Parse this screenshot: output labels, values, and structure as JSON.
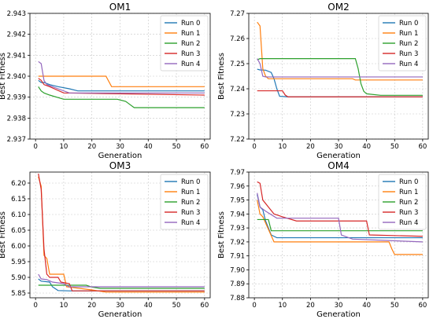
{
  "figure": {
    "width": 550,
    "height": 406
  },
  "series_colors": [
    "#1f77b4",
    "#ff7f0e",
    "#2ca02c",
    "#d62728",
    "#9467bd"
  ],
  "chart_data": [
    {
      "type": "line",
      "title": "OM1",
      "xlabel": "Generation",
      "ylabel": "Best Fitness",
      "xlim": [
        -2,
        62
      ],
      "ylim": [
        2.937,
        2.943
      ],
      "xticks": [
        0,
        10,
        20,
        30,
        40,
        50,
        60
      ],
      "yticks": [
        2.937,
        2.938,
        2.939,
        2.94,
        2.941,
        2.942,
        2.943
      ],
      "ytick_decimals": 3,
      "grid": true,
      "legend": "top-right",
      "series": [
        {
          "name": "Run 0",
          "points": [
            [
              1,
              2.9398
            ],
            [
              2,
              2.9397
            ],
            [
              3,
              2.9397
            ],
            [
              5,
              2.9396
            ],
            [
              8,
              2.9395
            ],
            [
              12,
              2.9394
            ],
            [
              15,
              2.9393
            ],
            [
              20,
              2.9393
            ],
            [
              60,
              2.9393
            ]
          ]
        },
        {
          "name": "Run 1",
          "points": [
            [
              1,
              2.94
            ],
            [
              2,
              2.94
            ],
            [
              25,
              2.94
            ],
            [
              27,
              2.9395
            ],
            [
              60,
              2.9395
            ]
          ]
        },
        {
          "name": "Run 2",
          "points": [
            [
              1,
              2.9395
            ],
            [
              2,
              2.9393
            ],
            [
              3,
              2.9392
            ],
            [
              5,
              2.9391
            ],
            [
              10,
              2.9389
            ],
            [
              29,
              2.9389
            ],
            [
              32,
              2.9388
            ],
            [
              33,
              2.9387
            ],
            [
              35,
              2.9385
            ],
            [
              60,
              2.9385
            ]
          ]
        },
        {
          "name": "Run 3",
          "points": [
            [
              1,
              2.9399
            ],
            [
              2,
              2.9398
            ],
            [
              3,
              2.9396
            ],
            [
              5,
              2.9395
            ],
            [
              10,
              2.9392
            ],
            [
              60,
              2.9391
            ]
          ]
        },
        {
          "name": "Run 4",
          "points": [
            [
              1,
              2.9407
            ],
            [
              2,
              2.9406
            ],
            [
              3,
              2.9398
            ],
            [
              4,
              2.9396
            ],
            [
              8,
              2.9394
            ],
            [
              12,
              2.9392
            ],
            [
              60,
              2.9392
            ]
          ]
        }
      ]
    },
    {
      "type": "line",
      "title": "OM2",
      "xlabel": "Generation",
      "ylabel": "Best Fitness",
      "xlim": [
        -2,
        62
      ],
      "ylim": [
        7.22,
        7.27
      ],
      "xticks": [
        0,
        10,
        20,
        30,
        40,
        50,
        60
      ],
      "yticks": [
        7.22,
        7.23,
        7.24,
        7.25,
        7.26,
        7.27
      ],
      "ytick_decimals": 2,
      "grid": true,
      "legend": "top-right",
      "series": [
        {
          "name": "Run 0",
          "points": [
            [
              1,
              7.2478
            ],
            [
              2,
              7.2475
            ],
            [
              4,
              7.2474
            ],
            [
              6,
              7.2465
            ],
            [
              7,
              7.244
            ],
            [
              8,
              7.24
            ],
            [
              9,
              7.237
            ],
            [
              12,
              7.2368
            ],
            [
              15,
              7.2368
            ],
            [
              60,
              7.2368
            ]
          ]
        },
        {
          "name": "Run 1",
          "points": [
            [
              1,
              7.2665
            ],
            [
              2,
              7.265
            ],
            [
              3,
              7.248
            ],
            [
              4,
              7.245
            ],
            [
              5,
              7.244
            ],
            [
              35,
              7.244
            ],
            [
              36,
              7.2435
            ],
            [
              60,
              7.2435
            ]
          ]
        },
        {
          "name": "Run 2",
          "points": [
            [
              1,
              7.2515
            ],
            [
              2,
              7.252
            ],
            [
              36,
              7.252
            ],
            [
              37,
              7.248
            ],
            [
              38,
              7.242
            ],
            [
              39,
              7.239
            ],
            [
              40,
              7.238
            ],
            [
              45,
              7.2374
            ],
            [
              60,
              7.2374
            ]
          ]
        },
        {
          "name": "Run 3",
          "points": [
            [
              1,
              7.2392
            ],
            [
              10,
              7.2392
            ],
            [
              11,
              7.2375
            ],
            [
              12,
              7.2368
            ],
            [
              60,
              7.2368
            ]
          ]
        },
        {
          "name": "Run 4",
          "points": [
            [
              1,
              7.252
            ],
            [
              2,
              7.25
            ],
            [
              3,
              7.245
            ],
            [
              4,
              7.2447
            ],
            [
              60,
              7.2447
            ]
          ]
        }
      ]
    },
    {
      "type": "line",
      "title": "OM3",
      "xlabel": "Generation",
      "ylabel": "Best Fitness",
      "xlim": [
        -2,
        62
      ],
      "ylim": [
        5.835,
        6.235
      ],
      "xticks": [
        0,
        10,
        20,
        30,
        40,
        50,
        60
      ],
      "yticks": [
        5.85,
        5.9,
        5.95,
        6.0,
        6.05,
        6.1,
        6.15,
        6.2
      ],
      "ytick_decimals": 2,
      "grid": true,
      "legend": "top-right",
      "series": [
        {
          "name": "Run 0",
          "points": [
            [
              1,
              5.895
            ],
            [
              2,
              5.888
            ],
            [
              5,
              5.885
            ],
            [
              6,
              5.87
            ],
            [
              8,
              5.858
            ],
            [
              12,
              5.857
            ],
            [
              60,
              5.857
            ]
          ]
        },
        {
          "name": "Run 1",
          "points": [
            [
              1,
              6.22
            ],
            [
              2,
              6.19
            ],
            [
              3,
              5.97
            ],
            [
              4,
              5.96
            ],
            [
              5,
              5.91
            ],
            [
              10,
              5.91
            ],
            [
              11,
              5.87
            ],
            [
              20,
              5.86
            ],
            [
              25,
              5.853
            ],
            [
              60,
              5.853
            ]
          ]
        },
        {
          "name": "Run 2",
          "points": [
            [
              1,
              5.875
            ],
            [
              18,
              5.875
            ],
            [
              20,
              5.869
            ],
            [
              23,
              5.865
            ],
            [
              60,
              5.865
            ]
          ]
        },
        {
          "name": "Run 3",
          "points": [
            [
              1,
              6.23
            ],
            [
              2,
              6.18
            ],
            [
              3,
              5.99
            ],
            [
              4,
              5.91
            ],
            [
              5,
              5.9
            ],
            [
              8,
              5.9
            ],
            [
              9,
              5.885
            ],
            [
              12,
              5.88
            ],
            [
              13,
              5.857
            ],
            [
              60,
              5.857
            ]
          ]
        },
        {
          "name": "Run 4",
          "points": [
            [
              1,
              5.91
            ],
            [
              2,
              5.895
            ],
            [
              4,
              5.893
            ],
            [
              6,
              5.885
            ],
            [
              10,
              5.88
            ],
            [
              12,
              5.87
            ],
            [
              60,
              5.87
            ]
          ]
        }
      ]
    },
    {
      "type": "line",
      "title": "OM4",
      "xlabel": "Generation",
      "ylabel": "Best Fitness",
      "xlim": [
        -2,
        62
      ],
      "ylim": [
        7.88,
        7.97
      ],
      "xticks": [
        0,
        10,
        20,
        30,
        40,
        50,
        60
      ],
      "yticks": [
        7.88,
        7.89,
        7.9,
        7.91,
        7.92,
        7.93,
        7.94,
        7.95,
        7.96,
        7.97
      ],
      "ytick_decimals": 2,
      "grid": true,
      "legend": "top-right",
      "series": [
        {
          "name": "Run 0",
          "points": [
            [
              1,
              7.954
            ],
            [
              2,
              7.945
            ],
            [
              3,
              7.943
            ],
            [
              4,
              7.935
            ],
            [
              6,
              7.925
            ],
            [
              8,
              7.923
            ],
            [
              60,
              7.923
            ]
          ]
        },
        {
          "name": "Run 1",
          "points": [
            [
              1,
              7.95
            ],
            [
              2,
              7.94
            ],
            [
              3,
              7.938
            ],
            [
              5,
              7.929
            ],
            [
              7,
              7.92
            ],
            [
              48,
              7.92
            ],
            [
              49,
              7.915
            ],
            [
              50,
              7.911
            ],
            [
              60,
              7.911
            ]
          ]
        },
        {
          "name": "Run 2",
          "points": [
            [
              1,
              7.936
            ],
            [
              5,
              7.936
            ],
            [
              6,
              7.928
            ],
            [
              60,
              7.928
            ]
          ]
        },
        {
          "name": "Run 3",
          "points": [
            [
              1,
              7.963
            ],
            [
              2,
              7.962
            ],
            [
              3,
              7.95
            ],
            [
              5,
              7.945
            ],
            [
              7,
              7.94
            ],
            [
              10,
              7.938
            ],
            [
              15,
              7.935
            ],
            [
              40,
              7.935
            ],
            [
              41,
              7.925
            ],
            [
              60,
              7.924
            ]
          ]
        },
        {
          "name": "Run 4",
          "points": [
            [
              1,
              7.955
            ],
            [
              2,
              7.945
            ],
            [
              4,
              7.942
            ],
            [
              8,
              7.937
            ],
            [
              30,
              7.937
            ],
            [
              31,
              7.925
            ],
            [
              35,
              7.922
            ],
            [
              60,
              7.92
            ]
          ]
        }
      ]
    }
  ]
}
